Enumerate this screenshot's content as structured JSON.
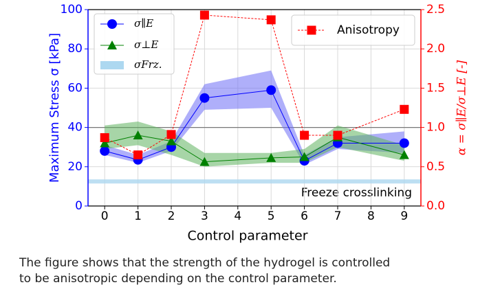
{
  "chart_data": {
    "type": "line",
    "x_label": "Control parameter",
    "y_label": "Maximum Stress σ [kPa]",
    "y2_label": "α = σ∥E/σ⊥E [-]",
    "annotation": "Freeze crosslinking",
    "freeze_level": 12.5,
    "y2_reference": 1.0,
    "xlim": [
      -0.5,
      9.5
    ],
    "xticks": [
      0,
      1,
      2,
      3,
      4,
      5,
      6,
      7,
      8,
      9
    ],
    "ylim": [
      0,
      100
    ],
    "yticks": [
      0,
      20,
      40,
      60,
      80,
      100
    ],
    "y2lim": [
      0,
      2.5
    ],
    "y2ticks": [
      {
        "value": 0,
        "label": "0.0"
      },
      0.5,
      {
        "value": 1,
        "label": "1.0"
      },
      1.5,
      {
        "value": 2,
        "label": "2.0"
      },
      2.5
    ],
    "grid": true,
    "series": [
      {
        "name": "σ∥E",
        "color": "#0000ff",
        "band_color": "#6e6ef5",
        "marker": "circle",
        "x": [
          0,
          1,
          2,
          3,
          5,
          6,
          7,
          9
        ],
        "values": [
          28,
          23.5,
          30,
          55,
          59,
          23,
          32,
          32
        ],
        "lower": [
          26,
          22,
          28,
          49,
          50,
          21,
          29,
          27
        ],
        "upper": [
          31,
          26,
          33,
          62,
          69,
          26,
          35,
          38
        ]
      },
      {
        "name": "σ⊥E",
        "color": "#008000",
        "band_color": "#5fb35f",
        "marker": "triangle",
        "x": [
          0,
          1,
          2,
          3,
          5,
          6,
          7,
          9
        ],
        "values": [
          32,
          36,
          33,
          22.5,
          24.5,
          25,
          35,
          26
        ],
        "lower": [
          29,
          31,
          26,
          20,
          22,
          22,
          30,
          23
        ],
        "upper": [
          41,
          43,
          38,
          27,
          27,
          29,
          41,
          31
        ]
      },
      {
        "name": "σFrz.",
        "color": "#add8f0",
        "marker": "band"
      },
      {
        "name": "Anisotropy",
        "color": "#ff0000",
        "marker": "square",
        "axis": "y2",
        "x": [
          0,
          1,
          2,
          3,
          5,
          6,
          7,
          9
        ],
        "values": [
          0.87,
          0.65,
          0.91,
          2.43,
          2.37,
          0.9,
          0.9,
          1.23
        ]
      }
    ]
  },
  "caption": [
    "The figure shows that the strength of the hydrogel is controlled",
    "to be anisotropic depending on the control parameter."
  ]
}
